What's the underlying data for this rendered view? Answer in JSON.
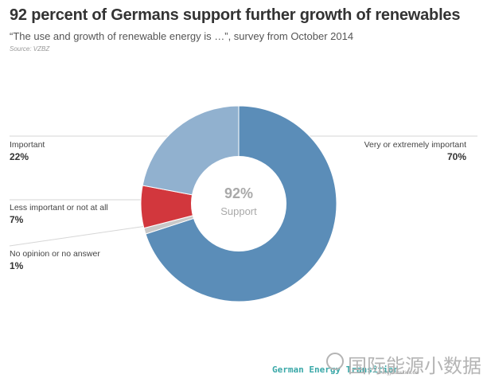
{
  "chart_data": {
    "type": "pie",
    "title": "92 percent of Germans support further growth of renewables",
    "subtitle": "“The use and growth of renewable energy is …”, survey from October 2014",
    "source": "Source: VZBZ",
    "center_value": "92%",
    "center_label": "Support",
    "slices": [
      {
        "label": "Very or extremely important",
        "value": 70,
        "value_label": "70%",
        "color": "#5b8db8"
      },
      {
        "label": "No opinion or no answer",
        "value": 1,
        "value_label": "1%",
        "color": "#c8c8c8"
      },
      {
        "label": "Less important or not at all",
        "value": 7,
        "value_label": "7%",
        "color": "#d2373d"
      },
      {
        "label": "Important",
        "value": 22,
        "value_label": "22%",
        "color": "#91b1cf"
      }
    ]
  },
  "footer": {
    "brand": "German Energy Transition",
    "url": "energytransition.de"
  },
  "watermark": {
    "text": "国际能源小数据"
  }
}
